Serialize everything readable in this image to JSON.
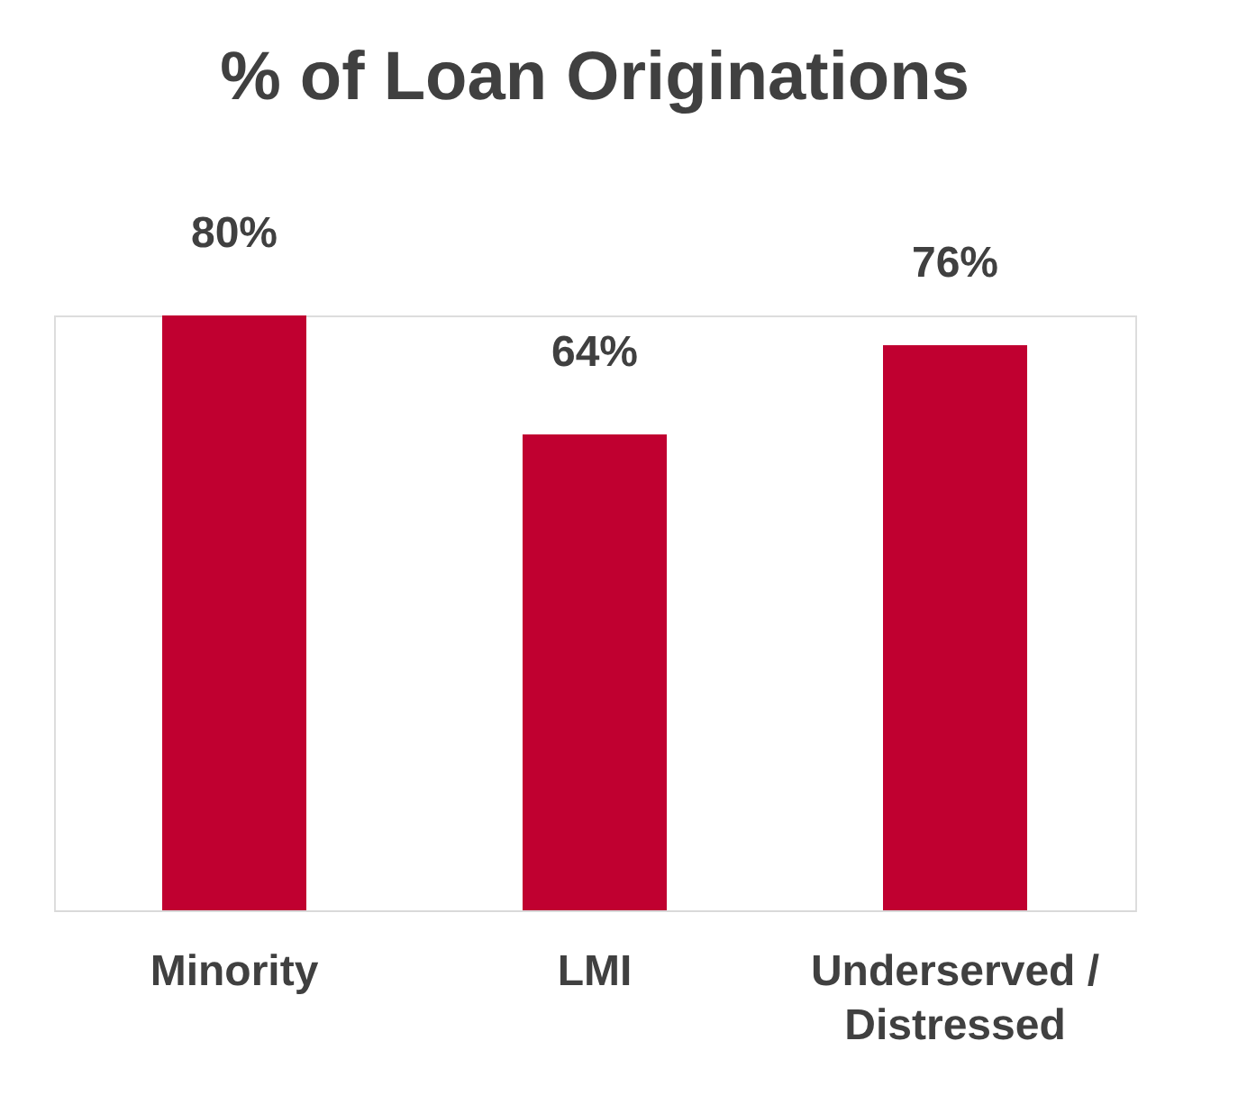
{
  "chart_data": {
    "type": "bar",
    "title": "% of Loan Originations",
    "categories": [
      "Minority",
      "LMI",
      "Underserved / Distressed"
    ],
    "values": [
      80,
      64,
      76
    ],
    "value_labels": [
      "80%",
      "64%",
      "76%"
    ],
    "color": "#c00030",
    "grid": false
  }
}
